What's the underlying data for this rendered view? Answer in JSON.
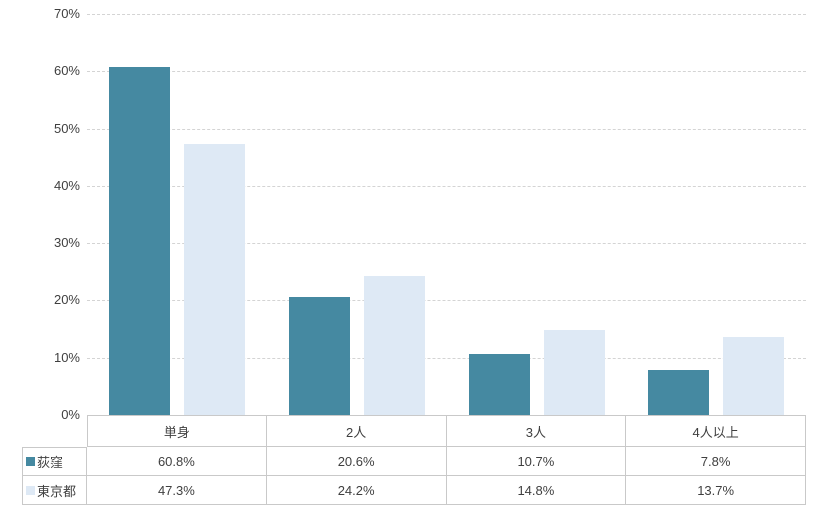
{
  "chart_data": {
    "type": "bar",
    "title": "",
    "categories": [
      "単身",
      "2人",
      "3人",
      "4人以上"
    ],
    "series": [
      {
        "name": "荻窪",
        "color": "#4589A1",
        "values": [
          60.8,
          20.6,
          10.7,
          7.8
        ],
        "labels": [
          "60.8%",
          "20.6%",
          "10.7%",
          "7.8%"
        ]
      },
      {
        "name": "東京都",
        "color": "#DEE9F5",
        "values": [
          47.3,
          24.2,
          14.8,
          13.7
        ],
        "labels": [
          "47.3%",
          "24.2%",
          "14.8%",
          "13.7%"
        ]
      }
    ],
    "xlabel": "",
    "ylabel": "",
    "ylim": [
      0,
      70
    ],
    "ytick_step": 10,
    "yticks": [
      "70%",
      "60%",
      "50%",
      "40%",
      "30%",
      "20%",
      "10%",
      "0%"
    ],
    "grid": true,
    "gridline_style": "dashed",
    "legend_position": "data-table-left",
    "data_table": true
  },
  "colors": {
    "series_ogikubo": "#4589A1",
    "series_tokyo": "#DEE9F5",
    "gridline": "#D4D4D4",
    "table_border": "#C9C9C9",
    "text": "#404040",
    "background": "#FFFFFF"
  }
}
